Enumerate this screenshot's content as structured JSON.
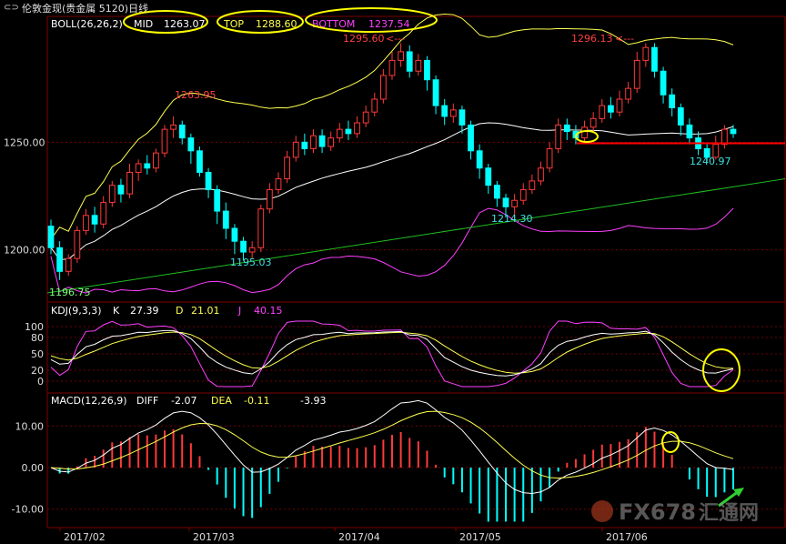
{
  "window": {
    "title": "伦敦金现(贵金属 5120)日线"
  },
  "chart_data": [
    {
      "type": "candlestick",
      "name": "price",
      "indicator": {
        "label": "BOLL(26,26,2)",
        "mid_label": "MID",
        "mid": "1263.07",
        "top_label": "TOP",
        "top": "1288.60",
        "bottom_label": "BOTTOM",
        "bottom": "1237.54"
      },
      "yticks": [
        "1250.00",
        "1200.00"
      ],
      "ylim": [
        1180,
        1300
      ],
      "annotations": [
        "1263.95",
        "1295.60",
        "1296.13",
        "1195.03",
        "1214.30",
        "1240.97",
        "1196.75"
      ],
      "support_line": {
        "from": 1180,
        "to": 1233
      },
      "resistance_level": 1249.5,
      "candles": [
        [
          1211,
          1201,
          1214,
          1198
        ],
        [
          1201,
          1190,
          1204,
          1186
        ],
        [
          1190,
          1196,
          1198,
          1188
        ],
        [
          1196,
          1209,
          1211,
          1194
        ],
        [
          1209,
          1216,
          1219,
          1207
        ],
        [
          1216,
          1212,
          1220,
          1208
        ],
        [
          1212,
          1222,
          1225,
          1210
        ],
        [
          1222,
          1230,
          1232,
          1220
        ],
        [
          1230,
          1226,
          1233,
          1222
        ],
        [
          1226,
          1236,
          1240,
          1224
        ],
        [
          1236,
          1240,
          1242,
          1232
        ],
        [
          1240,
          1238,
          1244,
          1235
        ],
        [
          1238,
          1245,
          1247,
          1236
        ],
        [
          1245,
          1256,
          1258,
          1243
        ],
        [
          1256,
          1258,
          1262,
          1252
        ],
        [
          1258,
          1252,
          1260,
          1249
        ],
        [
          1252,
          1246,
          1254,
          1240
        ],
        [
          1246,
          1236,
          1248,
          1234
        ],
        [
          1236,
          1228,
          1238,
          1224
        ],
        [
          1228,
          1218,
          1230,
          1212
        ],
        [
          1218,
          1210,
          1222,
          1205
        ],
        [
          1210,
          1204,
          1212,
          1198
        ],
        [
          1204,
          1199,
          1206,
          1195
        ],
        [
          1199,
          1201,
          1204,
          1196
        ],
        [
          1201,
          1219,
          1221,
          1199
        ],
        [
          1219,
          1228,
          1231,
          1217
        ],
        [
          1228,
          1233,
          1236,
          1226
        ],
        [
          1233,
          1243,
          1246,
          1231
        ],
        [
          1243,
          1250,
          1253,
          1241
        ],
        [
          1250,
          1247,
          1254,
          1244
        ],
        [
          1247,
          1253,
          1256,
          1245
        ],
        [
          1253,
          1248,
          1256,
          1245
        ],
        [
          1248,
          1252,
          1255,
          1246
        ],
        [
          1252,
          1256,
          1259,
          1250
        ],
        [
          1256,
          1254,
          1260,
          1251
        ],
        [
          1254,
          1259,
          1262,
          1252
        ],
        [
          1259,
          1264,
          1267,
          1257
        ],
        [
          1264,
          1270,
          1273,
          1262
        ],
        [
          1270,
          1281,
          1284,
          1268
        ],
        [
          1281,
          1288,
          1292,
          1279
        ],
        [
          1288,
          1292,
          1296,
          1285
        ],
        [
          1292,
          1283,
          1295,
          1280
        ],
        [
          1283,
          1288,
          1291,
          1281
        ],
        [
          1288,
          1279,
          1290,
          1274
        ],
        [
          1279,
          1267,
          1281,
          1263
        ],
        [
          1267,
          1262,
          1270,
          1258
        ],
        [
          1262,
          1265,
          1268,
          1259
        ],
        [
          1265,
          1258,
          1267,
          1254
        ],
        [
          1258,
          1246,
          1260,
          1242
        ],
        [
          1246,
          1238,
          1249,
          1233
        ],
        [
          1238,
          1230,
          1240,
          1226
        ],
        [
          1230,
          1224,
          1232,
          1220
        ],
        [
          1224,
          1220,
          1226,
          1215
        ],
        [
          1220,
          1223,
          1226,
          1214
        ],
        [
          1223,
          1228,
          1231,
          1221
        ],
        [
          1228,
          1232,
          1235,
          1226
        ],
        [
          1232,
          1238,
          1241,
          1230
        ],
        [
          1238,
          1247,
          1250,
          1236
        ],
        [
          1247,
          1258,
          1261,
          1245
        ],
        [
          1258,
          1255,
          1261,
          1251
        ],
        [
          1255,
          1252,
          1258,
          1249
        ],
        [
          1252,
          1257,
          1260,
          1250
        ],
        [
          1257,
          1261,
          1264,
          1255
        ],
        [
          1261,
          1267,
          1270,
          1259
        ],
        [
          1267,
          1264,
          1271,
          1261
        ],
        [
          1264,
          1270,
          1274,
          1262
        ],
        [
          1270,
          1275,
          1278,
          1268
        ],
        [
          1275,
          1288,
          1292,
          1273
        ],
        [
          1288,
          1294,
          1296,
          1285
        ],
        [
          1294,
          1283,
          1296,
          1280
        ],
        [
          1283,
          1272,
          1285,
          1268
        ],
        [
          1272,
          1266,
          1275,
          1262
        ],
        [
          1266,
          1258,
          1268,
          1253
        ],
        [
          1258,
          1252,
          1261,
          1249
        ],
        [
          1252,
          1247,
          1255,
          1244
        ],
        [
          1247,
          1243,
          1249,
          1241
        ],
        [
          1243,
          1249,
          1253,
          1242
        ],
        [
          1249,
          1256,
          1258,
          1247
        ],
        [
          1256,
          1254,
          1258,
          1252
        ]
      ]
    },
    {
      "type": "line",
      "name": "kdj",
      "label": "KDJ(9,3,3)",
      "k_label": "K",
      "k": "27.39",
      "d_label": "D",
      "d": "21.01",
      "j_label": "J",
      "j": "40.15",
      "yticks": [
        "100",
        "80",
        "50",
        "20",
        "0"
      ],
      "ylim": [
        -15,
        115
      ]
    },
    {
      "type": "histogram",
      "name": "macd",
      "label": "MACD(12,26,9)",
      "diff_label": "DIFF",
      "diff": "-2.07",
      "dea_label": "DEA",
      "dea": "-0.11",
      "macd": "-3.93",
      "yticks": [
        "10.00",
        "0.00",
        "-10.00"
      ],
      "ylim": [
        -14,
        14
      ]
    }
  ],
  "xaxis": {
    "labels": [
      "2017/02",
      "2017/03",
      "2017/04",
      "2017/05",
      "2017/06"
    ]
  },
  "watermark": {
    "text": "FX678",
    "sub": "汇通网"
  },
  "colors": {
    "up": "#ff3a3a",
    "down": "#00ffff",
    "mid": "#ffffff",
    "top": "#ffff50",
    "bottom": "#ff40ff",
    "kline": "#ffffff",
    "dline": "#ffff50",
    "jline": "#ff40ff",
    "support": "#20c020",
    "resistance": "#ff0000",
    "highlight": "#ffff00"
  }
}
